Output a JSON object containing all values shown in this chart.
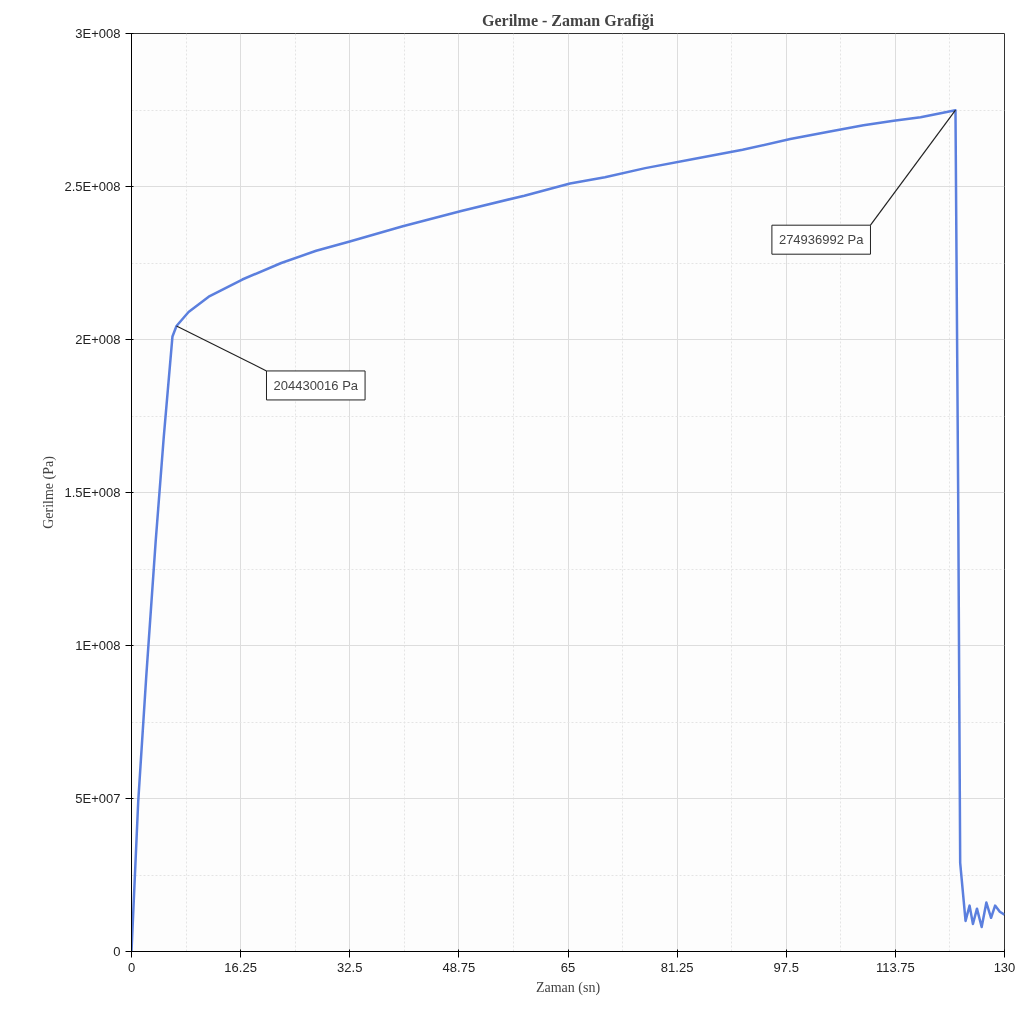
{
  "chart_data": {
    "type": "line",
    "title": "Gerilme - Zaman Grafiği",
    "xlabel": "Zaman (sn)",
    "ylabel": "Gerilme (Pa)",
    "x": [
      0,
      1.0,
      2.2,
      3.6,
      4.8,
      6.1,
      6.7,
      8.5,
      11.5,
      16.5,
      22.3,
      27.5,
      32.5,
      40.4,
      49.1,
      58.5,
      65.3,
      70.5,
      76.5,
      83.7,
      91,
      98.1,
      104,
      109,
      113.5,
      117.5,
      122.7,
      123.1,
      123.4,
      124.2,
      124.8,
      125.3,
      125.9,
      126.6,
      127.3,
      128,
      128.6,
      129.3,
      130
    ],
    "series": [
      {
        "color": "#5b7fde",
        "values": [
          0,
          49000000,
          90000000,
          134000000,
          168000000,
          201000000,
          204400000,
          209000000,
          214000000,
          219600000,
          225000000,
          229000000,
          232000000,
          237000000,
          242000000,
          247000000,
          251000000,
          253000000,
          256000000,
          259000000,
          262000000,
          265500000,
          268000000,
          270000000,
          271500000,
          272600000,
          274900000,
          150000000,
          29000000,
          10000000,
          15000000,
          9000000,
          14000000,
          8000000,
          16000000,
          11000000,
          15000000,
          13000000,
          12000000
        ]
      }
    ],
    "xlim": [
      0,
      130
    ],
    "ylim": [
      0,
      300000000
    ],
    "xticks": [
      0,
      16.25,
      32.5,
      48.75,
      65,
      81.25,
      97.5,
      113.75,
      130
    ],
    "yticks": [
      {
        "value": 0,
        "label": "0"
      },
      {
        "value": 50000000,
        "label": "5E+007"
      },
      {
        "value": 100000000,
        "label": "1E+008"
      },
      {
        "value": 150000000,
        "label": "1.5E+008"
      },
      {
        "value": 200000000,
        "label": "2E+008"
      },
      {
        "value": 250000000,
        "label": "2.5E+008"
      },
      {
        "value": 300000000,
        "label": "3E+008"
      }
    ],
    "grid": true,
    "marker": "none",
    "line_style": "solid",
    "annotations": [
      {
        "text": "204430016 Pa",
        "x": 6.7,
        "y": 204430016
      },
      {
        "text": "274936992 Pa",
        "x": 122.7,
        "y": 274936992
      }
    ]
  }
}
